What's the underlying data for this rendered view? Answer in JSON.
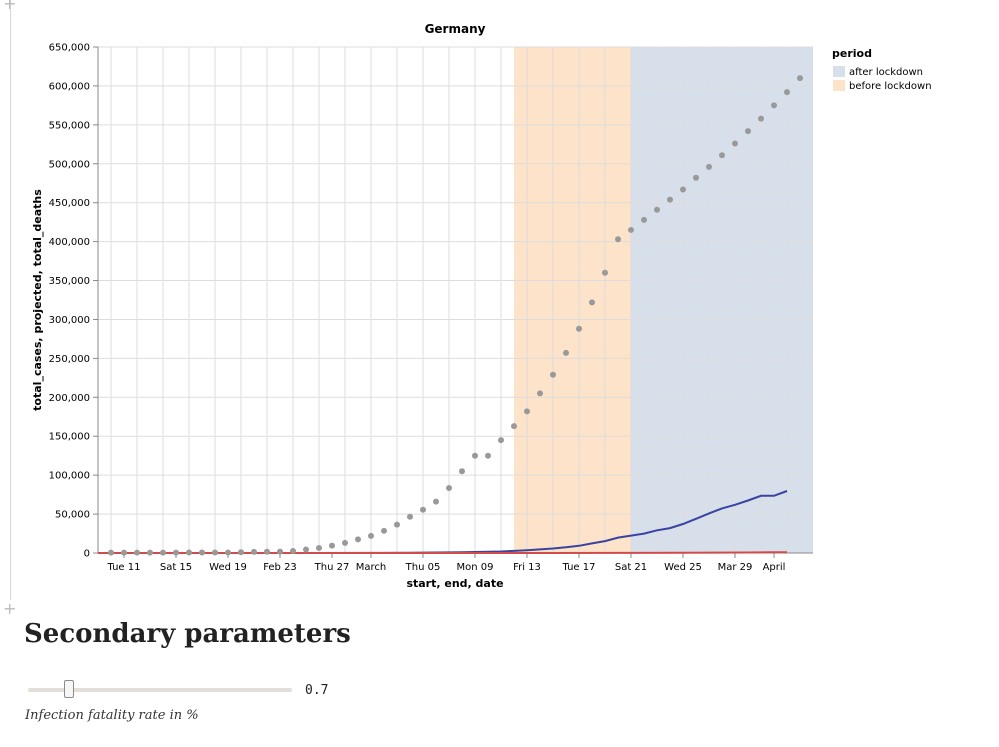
{
  "notebook": {
    "plus_glyph": "+",
    "secondary_heading": "Secondary parameters",
    "slider": {
      "value": 0.7,
      "value_label": "0.7",
      "min": 0,
      "max": 5,
      "caption": "Infection fatality rate in %"
    }
  },
  "chart_data": {
    "type": "scatter",
    "title": "Germany",
    "xlabel": "start, end, date",
    "ylabel": "total_cases, projected, total_deaths",
    "x_range": [
      "2020-02-09",
      "2020-04-04"
    ],
    "ylim": [
      0,
      650000
    ],
    "y_ticks": [
      0,
      50000,
      100000,
      150000,
      200000,
      250000,
      300000,
      350000,
      400000,
      450000,
      500000,
      550000,
      600000,
      650000
    ],
    "y_tick_labels": [
      "0",
      "50,000",
      "100,000",
      "150,000",
      "200,000",
      "250,000",
      "300,000",
      "350,000",
      "400,000",
      "450,000",
      "500,000",
      "550,000",
      "600,000",
      "650,000"
    ],
    "x_ticks": [
      {
        "date": "2020-02-11",
        "label": "Tue 11"
      },
      {
        "date": "2020-02-15",
        "label": "Sat 15"
      },
      {
        "date": "2020-02-19",
        "label": "Wed 19"
      },
      {
        "date": "2020-02-23",
        "label": "Feb 23"
      },
      {
        "date": "2020-02-27",
        "label": "Thu 27"
      },
      {
        "date": "2020-03-01",
        "label": "March"
      },
      {
        "date": "2020-03-05",
        "label": "Thu 05"
      },
      {
        "date": "2020-03-09",
        "label": "Mon 09"
      },
      {
        "date": "2020-03-13",
        "label": "Fri 13"
      },
      {
        "date": "2020-03-17",
        "label": "Tue 17"
      },
      {
        "date": "2020-03-21",
        "label": "Sat 21"
      },
      {
        "date": "2020-03-25",
        "label": "Wed 25"
      },
      {
        "date": "2020-03-29",
        "label": "Mar 29"
      },
      {
        "date": "2020-04-01",
        "label": "April"
      }
    ],
    "grid": true,
    "legend": {
      "title": "period",
      "position": "top-right",
      "entries": [
        {
          "label": "after lockdown",
          "color": "#d7dfeb"
        },
        {
          "label": "before lockdown",
          "color": "#fde3c9"
        }
      ]
    },
    "bands": [
      {
        "period": "before lockdown",
        "start": "2020-03-12",
        "end": "2020-03-21",
        "color": "#fde3c9"
      },
      {
        "period": "after lockdown",
        "start": "2020-03-21",
        "end": "2020-04-04",
        "color": "#d7dfeb"
      }
    ],
    "series": [
      {
        "name": "projected",
        "type": "scatter",
        "color": "#999999",
        "points": [
          [
            "2020-02-10",
            500
          ],
          [
            "2020-02-11",
            500
          ],
          [
            "2020-02-12",
            500
          ],
          [
            "2020-02-13",
            500
          ],
          [
            "2020-02-14",
            500
          ],
          [
            "2020-02-15",
            500
          ],
          [
            "2020-02-16",
            700
          ],
          [
            "2020-02-17",
            700
          ],
          [
            "2020-02-18",
            700
          ],
          [
            "2020-02-19",
            700
          ],
          [
            "2020-02-20",
            1000
          ],
          [
            "2020-02-21",
            1400
          ],
          [
            "2020-02-22",
            1600
          ],
          [
            "2020-02-23",
            1800
          ],
          [
            "2020-02-24",
            2500
          ],
          [
            "2020-02-25",
            4500
          ],
          [
            "2020-02-26",
            6500
          ],
          [
            "2020-02-27",
            9500
          ],
          [
            "2020-02-28",
            13000
          ],
          [
            "2020-02-29",
            17500
          ],
          [
            "2020-03-01",
            22000
          ],
          [
            "2020-03-02",
            28500
          ],
          [
            "2020-03-03",
            36500
          ],
          [
            "2020-03-04",
            46500
          ],
          [
            "2020-03-05",
            55500
          ],
          [
            "2020-03-06",
            66000
          ],
          [
            "2020-03-07",
            83500
          ],
          [
            "2020-03-08",
            105000
          ],
          [
            "2020-03-09",
            125000
          ],
          [
            "2020-03-10",
            125000
          ],
          [
            "2020-03-11",
            145000
          ],
          [
            "2020-03-12",
            163000
          ],
          [
            "2020-03-13",
            182000
          ],
          [
            "2020-03-14",
            205000
          ],
          [
            "2020-03-15",
            229000
          ],
          [
            "2020-03-16",
            257000
          ],
          [
            "2020-03-17",
            288000
          ],
          [
            "2020-03-18",
            322000
          ],
          [
            "2020-03-19",
            360000
          ],
          [
            "2020-03-20",
            403000
          ],
          [
            "2020-03-21",
            415000
          ],
          [
            "2020-03-22",
            428000
          ],
          [
            "2020-03-23",
            441000
          ],
          [
            "2020-03-24",
            454000
          ],
          [
            "2020-03-25",
            467000
          ],
          [
            "2020-03-26",
            482000
          ],
          [
            "2020-03-27",
            496000
          ],
          [
            "2020-03-28",
            511000
          ],
          [
            "2020-03-29",
            526000
          ],
          [
            "2020-03-30",
            542000
          ],
          [
            "2020-03-31",
            558000
          ],
          [
            "2020-04-01",
            575000
          ],
          [
            "2020-04-02",
            592000
          ],
          [
            "2020-04-03",
            610000
          ]
        ]
      },
      {
        "name": "total_cases",
        "type": "line",
        "color": "#3a44a0",
        "points": [
          [
            "2020-02-09",
            0
          ],
          [
            "2020-02-26",
            20
          ],
          [
            "2020-03-01",
            130
          ],
          [
            "2020-03-04",
            260
          ],
          [
            "2020-03-06",
            700
          ],
          [
            "2020-03-08",
            1000
          ],
          [
            "2020-03-10",
            1600
          ],
          [
            "2020-03-11",
            1900
          ],
          [
            "2020-03-12",
            2700
          ],
          [
            "2020-03-13",
            3600
          ],
          [
            "2020-03-14",
            4600
          ],
          [
            "2020-03-15",
            5800
          ],
          [
            "2020-03-16",
            7300
          ],
          [
            "2020-03-17",
            9300
          ],
          [
            "2020-03-18",
            12300
          ],
          [
            "2020-03-19",
            15300
          ],
          [
            "2020-03-20",
            19800
          ],
          [
            "2020-03-21",
            22400
          ],
          [
            "2020-03-22",
            24900
          ],
          [
            "2020-03-23",
            29100
          ],
          [
            "2020-03-24",
            32000
          ],
          [
            "2020-03-25",
            37300
          ],
          [
            "2020-03-26",
            43900
          ],
          [
            "2020-03-27",
            50900
          ],
          [
            "2020-03-28",
            57300
          ],
          [
            "2020-03-29",
            61900
          ],
          [
            "2020-03-30",
            67400
          ],
          [
            "2020-03-31",
            73500
          ],
          [
            "2020-04-01",
            73500
          ],
          [
            "2020-04-02",
            79700
          ]
        ]
      },
      {
        "name": "total_deaths",
        "type": "line",
        "color": "#d24b4b",
        "points": [
          [
            "2020-02-09",
            0
          ],
          [
            "2020-03-15",
            13
          ],
          [
            "2020-03-20",
            84
          ],
          [
            "2020-03-25",
            206
          ],
          [
            "2020-03-30",
            645
          ],
          [
            "2020-04-01",
            872
          ],
          [
            "2020-04-02",
            1017
          ]
        ]
      }
    ]
  }
}
